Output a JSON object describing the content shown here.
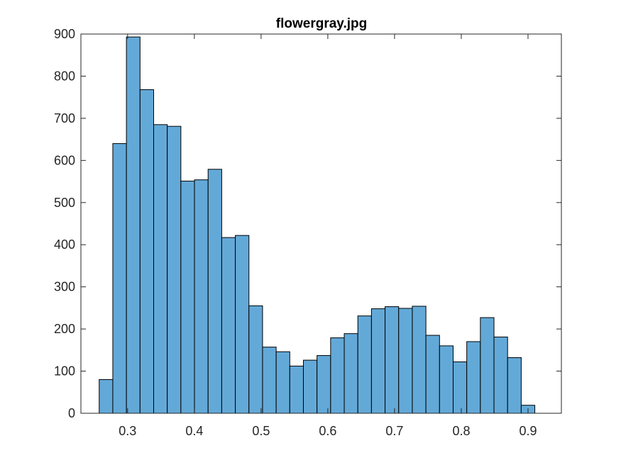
{
  "chart_data": {
    "type": "bar",
    "subtype": "histogram",
    "title": "flowergray.jpg",
    "xlabel": "",
    "ylabel": "",
    "xlim": [
      0.23,
      0.95
    ],
    "ylim": [
      0,
      900
    ],
    "xticks": [
      0.3,
      0.4,
      0.5,
      0.6,
      0.7,
      0.8,
      0.9
    ],
    "xtick_labels": [
      "0.3",
      "0.4",
      "0.5",
      "0.6",
      "0.7",
      "0.8",
      "0.9"
    ],
    "yticks": [
      0,
      100,
      200,
      300,
      400,
      500,
      600,
      700,
      800,
      900
    ],
    "ytick_labels": [
      "0",
      "100",
      "200",
      "300",
      "400",
      "500",
      "600",
      "700",
      "800",
      "900"
    ],
    "bin_edges": [
      0.2574,
      0.2778,
      0.2982,
      0.3186,
      0.339,
      0.3594,
      0.3798,
      0.4002,
      0.4206,
      0.441,
      0.4614,
      0.4818,
      0.5022,
      0.5226,
      0.543,
      0.5634,
      0.5838,
      0.6042,
      0.6246,
      0.645,
      0.6654,
      0.6858,
      0.7062,
      0.7266,
      0.747,
      0.7674,
      0.7878,
      0.8082,
      0.8286,
      0.849,
      0.8694,
      0.8898,
      0.9102
    ],
    "values": [
      80,
      640,
      893,
      768,
      685,
      681,
      551,
      554,
      579,
      417,
      422,
      255,
      157,
      146,
      112,
      126,
      137,
      179,
      189,
      231,
      248,
      253,
      249,
      254,
      185,
      160,
      122,
      170,
      227,
      181,
      132,
      19
    ],
    "grid": false,
    "legend": "none",
    "bar_color": "#63a9d8",
    "edge_color": "#000000"
  }
}
